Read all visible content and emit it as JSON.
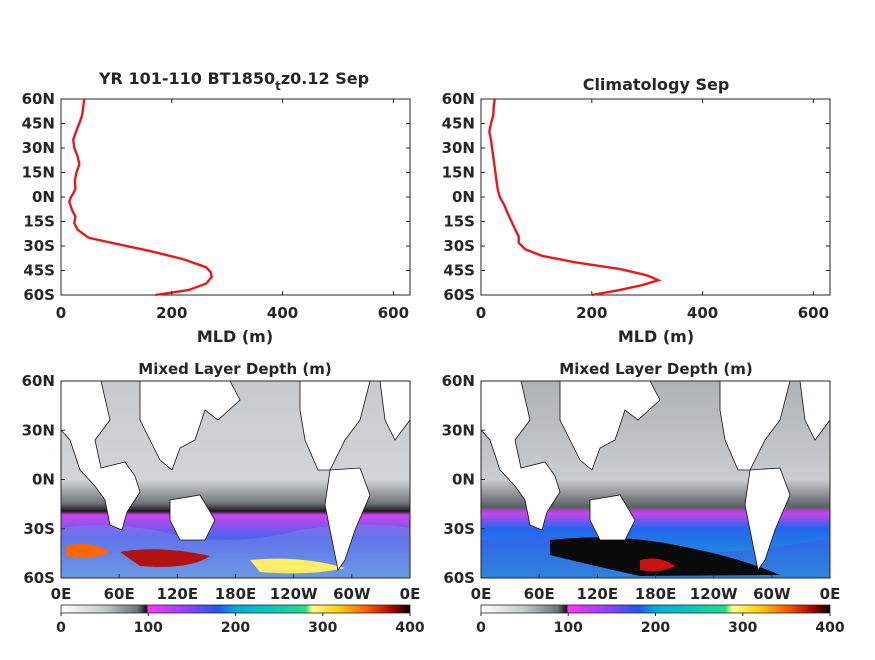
{
  "profile_xticks": [
    "0",
    "200",
    "400",
    "600"
  ],
  "profile_yticks": [
    "60N",
    "45N",
    "30N",
    "15N",
    "0N",
    "15S",
    "30S",
    "45S",
    "60S"
  ],
  "map_yticks": [
    "60N",
    "30N",
    "0N",
    "30S",
    "60S"
  ],
  "map_xticks": [
    "0E",
    "60E",
    "120E",
    "180E",
    "120W",
    "60W",
    "0E"
  ],
  "colorbar_ticks": [
    "0",
    "100",
    "200",
    "300",
    "400"
  ],
  "colors": {
    "profile_line": "#e41a1c",
    "axis": "#262626",
    "land": "#ffffff"
  },
  "chart_data": [
    {
      "type": "line",
      "title": "YR 101-110 BT1850",
      "title_subscript": "t",
      "title_suffix": "z0.12 Sep",
      "xlabel": "MLD (m)",
      "xlim": [
        0,
        630
      ],
      "ylim": [
        -60,
        60
      ],
      "x": [
        42,
        40,
        38,
        33,
        27,
        22,
        24,
        30,
        33,
        28,
        25,
        26,
        22,
        18,
        15,
        20,
        26,
        24,
        30,
        50,
        90,
        160,
        220,
        262,
        270,
        272,
        262,
        230,
        170
      ],
      "y": [
        60,
        55,
        50,
        45,
        40,
        35,
        30,
        25,
        20,
        15,
        10,
        5,
        2,
        0,
        -3,
        -8,
        -12,
        -16,
        -20,
        -25,
        -28,
        -33,
        -38,
        -43,
        -46,
        -49,
        -53,
        -57,
        -60
      ]
    },
    {
      "type": "line",
      "title": "Climatology Sep",
      "xlabel": "MLD (m)",
      "xlim": [
        0,
        630
      ],
      "ylim": [
        -60,
        60
      ],
      "x": [
        25,
        23,
        22,
        18,
        15,
        18,
        20,
        22,
        24,
        26,
        28,
        30,
        34,
        42,
        48,
        55,
        62,
        68,
        68,
        80,
        110,
        170,
        250,
        300,
        320,
        290,
        250,
        200
      ],
      "y": [
        60,
        55,
        50,
        45,
        40,
        35,
        30,
        25,
        20,
        15,
        10,
        5,
        0,
        -5,
        -10,
        -15,
        -20,
        -24,
        -28,
        -32,
        -36,
        -40,
        -44,
        -48,
        -51,
        -54,
        -57,
        -60
      ]
    },
    {
      "type": "heatmap",
      "title": "Mixed Layer Depth (m)",
      "xlim": [
        0,
        360
      ],
      "ylim": [
        -60,
        60
      ],
      "colorbar_range": [
        0,
        400
      ]
    },
    {
      "type": "heatmap",
      "title": "Mixed Layer Depth (m)",
      "xlim": [
        0,
        360
      ],
      "ylim": [
        -60,
        60
      ],
      "colorbar_range": [
        0,
        400
      ]
    }
  ]
}
